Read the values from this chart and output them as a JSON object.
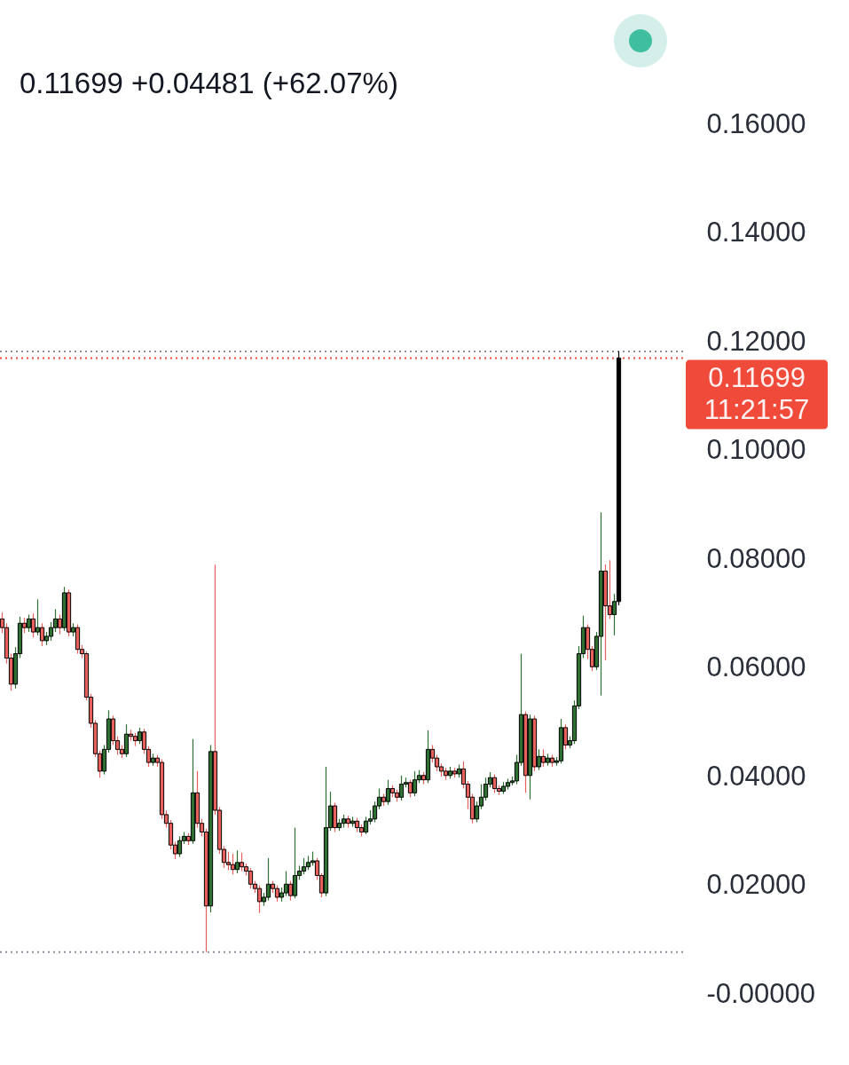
{
  "chart_data": {
    "type": "candlestick",
    "subtitle": "0.11699 +0.04481 (+62.07%)",
    "categories": [
      null,
      null,
      null,
      null,
      null,
      null,
      null,
      null,
      null,
      null,
      null,
      null,
      null,
      null,
      null,
      null,
      null,
      null,
      null,
      null,
      null,
      null,
      null,
      null,
      null,
      null,
      null,
      null,
      null,
      null,
      null,
      null,
      null,
      null,
      null,
      null,
      null,
      null,
      null,
      null,
      null,
      null,
      null,
      null,
      null,
      null,
      null,
      null,
      null,
      null,
      null,
      null,
      null,
      null,
      null,
      null,
      null,
      null,
      null,
      null,
      null,
      null,
      null,
      null,
      null,
      null,
      null,
      null,
      null,
      null,
      null,
      null,
      null,
      null,
      null,
      null,
      null,
      null,
      null,
      null,
      null,
      null,
      null,
      null,
      null,
      null,
      null,
      null,
      null,
      null,
      null,
      null,
      null,
      null,
      null,
      null,
      null,
      null,
      null,
      null,
      null,
      null,
      null,
      null,
      null,
      null,
      null,
      null,
      null,
      null,
      null,
      null,
      null,
      null,
      null,
      null,
      null,
      null,
      null,
      null,
      null,
      null,
      null,
      null,
      null,
      null,
      null,
      null,
      null,
      null,
      null,
      null,
      null,
      null,
      null,
      null,
      null,
      null,
      null,
      null
    ],
    "ohlc": [
      [
        0.069,
        0.0702,
        0.0664,
        0.0674
      ],
      [
        0.0674,
        0.0682,
        0.0608,
        0.0618
      ],
      [
        0.0618,
        0.0626,
        0.0558,
        0.057
      ],
      [
        0.057,
        0.0638,
        0.0562,
        0.0626
      ],
      [
        0.0626,
        0.0694,
        0.0618,
        0.0682
      ],
      [
        0.0682,
        0.0692,
        0.0664,
        0.0674
      ],
      [
        0.0674,
        0.0698,
        0.0666,
        0.069
      ],
      [
        0.069,
        0.07,
        0.0656,
        0.0666
      ],
      [
        0.0666,
        0.0726,
        0.066,
        0.0674
      ],
      [
        0.0674,
        0.0682,
        0.064,
        0.065
      ],
      [
        0.065,
        0.0666,
        0.0642,
        0.0658
      ],
      [
        0.0658,
        0.0684,
        0.065,
        0.0674
      ],
      [
        0.0674,
        0.0708,
        0.0666,
        0.069
      ],
      [
        0.069,
        0.0698,
        0.0662,
        0.0674
      ],
      [
        0.0674,
        0.0749,
        0.0668,
        0.0738
      ],
      [
        0.0738,
        0.0744,
        0.0658,
        0.0666
      ],
      [
        0.0666,
        0.0682,
        0.0658,
        0.0674
      ],
      [
        0.0674,
        0.068,
        0.0626,
        0.0634
      ],
      [
        0.0634,
        0.0642,
        0.0618,
        0.0626
      ],
      [
        0.0626,
        0.063,
        0.054,
        0.0546
      ],
      [
        0.0546,
        0.0552,
        0.049,
        0.0498
      ],
      [
        0.0498,
        0.0504,
        0.0436,
        0.0442
      ],
      [
        0.0442,
        0.0448,
        0.0398,
        0.041
      ],
      [
        0.041,
        0.0458,
        0.0404,
        0.045
      ],
      [
        0.045,
        0.0522,
        0.0444,
        0.0506
      ],
      [
        0.0506,
        0.0512,
        0.0458,
        0.0466
      ],
      [
        0.0466,
        0.0474,
        0.044,
        0.045
      ],
      [
        0.045,
        0.0458,
        0.0434,
        0.0442
      ],
      [
        0.0442,
        0.0496,
        0.0436,
        0.0478
      ],
      [
        0.0478,
        0.0486,
        0.0466,
        0.0474
      ],
      [
        0.0474,
        0.048,
        0.0456,
        0.0466
      ],
      [
        0.0466,
        0.049,
        0.046,
        0.0482
      ],
      [
        0.0482,
        0.0488,
        0.0442,
        0.045
      ],
      [
        0.045,
        0.0456,
        0.0418,
        0.0426
      ],
      [
        0.0426,
        0.0442,
        0.042,
        0.0434
      ],
      [
        0.0434,
        0.044,
        0.0418,
        0.0426
      ],
      [
        0.0426,
        0.0432,
        0.0322,
        0.033
      ],
      [
        0.033,
        0.0338,
        0.0306,
        0.0314
      ],
      [
        0.0314,
        0.032,
        0.0266,
        0.0274
      ],
      [
        0.0274,
        0.028,
        0.0248,
        0.0258
      ],
      [
        0.0258,
        0.029,
        0.0252,
        0.0282
      ],
      [
        0.0282,
        0.0298,
        0.0276,
        0.029
      ],
      [
        0.029,
        0.0296,
        0.0274,
        0.0282
      ],
      [
        0.0282,
        0.0469,
        0.0276,
        0.037
      ],
      [
        0.037,
        0.041,
        0.0306,
        0.0314
      ],
      [
        0.0314,
        0.0322,
        0.029,
        0.0298
      ],
      [
        0.0298,
        0.0304,
        0.0077,
        0.0162
      ],
      [
        0.0162,
        0.0458,
        0.015,
        0.0446
      ],
      [
        0.0446,
        0.079,
        0.033,
        0.0338
      ],
      [
        0.0338,
        0.0344,
        0.0258,
        0.0266
      ],
      [
        0.0266,
        0.0272,
        0.0232,
        0.0242
      ],
      [
        0.0242,
        0.0262,
        0.0228,
        0.0238
      ],
      [
        0.0238,
        0.0258,
        0.022,
        0.0229
      ],
      [
        0.0229,
        0.0264,
        0.0222,
        0.0242
      ],
      [
        0.0242,
        0.026,
        0.0226,
        0.0234
      ],
      [
        0.0234,
        0.024,
        0.0218,
        0.0226
      ],
      [
        0.0226,
        0.0232,
        0.0194,
        0.0202
      ],
      [
        0.0202,
        0.0208,
        0.0186,
        0.0194
      ],
      [
        0.0194,
        0.02,
        0.0149,
        0.017
      ],
      [
        0.017,
        0.0186,
        0.0162,
        0.0178
      ],
      [
        0.0178,
        0.025,
        0.0172,
        0.0202
      ],
      [
        0.0202,
        0.0208,
        0.0186,
        0.0194
      ],
      [
        0.0194,
        0.02,
        0.017,
        0.0178
      ],
      [
        0.0178,
        0.0196,
        0.017,
        0.0186
      ],
      [
        0.0186,
        0.0226,
        0.018,
        0.0202
      ],
      [
        0.0202,
        0.0208,
        0.0172,
        0.0181
      ],
      [
        0.0181,
        0.0306,
        0.0176,
        0.0218
      ],
      [
        0.0218,
        0.0236,
        0.021,
        0.0226
      ],
      [
        0.0226,
        0.025,
        0.022,
        0.0234
      ],
      [
        0.0234,
        0.0254,
        0.0228,
        0.0242
      ],
      [
        0.0242,
        0.0262,
        0.0236,
        0.0245
      ],
      [
        0.0245,
        0.025,
        0.021,
        0.0218
      ],
      [
        0.0218,
        0.0222,
        0.0178,
        0.0186
      ],
      [
        0.0186,
        0.0418,
        0.018,
        0.0306
      ],
      [
        0.0306,
        0.0372,
        0.03,
        0.0346
      ],
      [
        0.0346,
        0.0352,
        0.0298,
        0.0306
      ],
      [
        0.0306,
        0.0322,
        0.03,
        0.0314
      ],
      [
        0.0314,
        0.033,
        0.0306,
        0.0322
      ],
      [
        0.0322,
        0.0328,
        0.0306,
        0.0314
      ],
      [
        0.0314,
        0.0326,
        0.0308,
        0.0318
      ],
      [
        0.0318,
        0.0324,
        0.0298,
        0.0306
      ],
      [
        0.0306,
        0.0312,
        0.029,
        0.0298
      ],
      [
        0.0298,
        0.0326,
        0.0294,
        0.0318
      ],
      [
        0.0318,
        0.0338,
        0.0312,
        0.0322
      ],
      [
        0.0322,
        0.0354,
        0.0316,
        0.0346
      ],
      [
        0.0346,
        0.0378,
        0.034,
        0.0362
      ],
      [
        0.0362,
        0.0368,
        0.0346,
        0.0354
      ],
      [
        0.0354,
        0.0394,
        0.0348,
        0.0378
      ],
      [
        0.0378,
        0.0384,
        0.0362,
        0.037
      ],
      [
        0.037,
        0.0376,
        0.0354,
        0.0362
      ],
      [
        0.0362,
        0.0402,
        0.0356,
        0.0386
      ],
      [
        0.0386,
        0.0398,
        0.038,
        0.0389
      ],
      [
        0.0389,
        0.0394,
        0.0362,
        0.037
      ],
      [
        0.037,
        0.041,
        0.0364,
        0.0394
      ],
      [
        0.0394,
        0.0412,
        0.0388,
        0.0402
      ],
      [
        0.0402,
        0.0408,
        0.0386,
        0.0394
      ],
      [
        0.0394,
        0.0485,
        0.0388,
        0.045
      ],
      [
        0.045,
        0.0458,
        0.0426,
        0.0434
      ],
      [
        0.0434,
        0.044,
        0.041,
        0.0418
      ],
      [
        0.0418,
        0.0424,
        0.04,
        0.041
      ],
      [
        0.041,
        0.0416,
        0.0394,
        0.0402
      ],
      [
        0.0402,
        0.0418,
        0.0396,
        0.041
      ],
      [
        0.041,
        0.0416,
        0.0398,
        0.0405
      ],
      [
        0.0405,
        0.0422,
        0.0398,
        0.0414
      ],
      [
        0.0414,
        0.0428,
        0.0378,
        0.0386
      ],
      [
        0.0386,
        0.0392,
        0.034,
        0.0362
      ],
      [
        0.0362,
        0.0368,
        0.0314,
        0.0322
      ],
      [
        0.0322,
        0.0354,
        0.0316,
        0.0346
      ],
      [
        0.0346,
        0.0386,
        0.034,
        0.0362
      ],
      [
        0.0362,
        0.0398,
        0.0356,
        0.0386
      ],
      [
        0.0386,
        0.0408,
        0.038,
        0.0398
      ],
      [
        0.0398,
        0.0404,
        0.037,
        0.0378
      ],
      [
        0.0378,
        0.0384,
        0.0366,
        0.0373
      ],
      [
        0.0373,
        0.039,
        0.0368,
        0.0382
      ],
      [
        0.0382,
        0.0396,
        0.0376,
        0.0389
      ],
      [
        0.0389,
        0.04,
        0.0384,
        0.0392
      ],
      [
        0.0392,
        0.044,
        0.0386,
        0.0426
      ],
      [
        0.0426,
        0.0626,
        0.042,
        0.0514
      ],
      [
        0.0514,
        0.052,
        0.037,
        0.0402
      ],
      [
        0.0402,
        0.0514,
        0.0358,
        0.0506
      ],
      [
        0.0506,
        0.0512,
        0.041,
        0.0418
      ],
      [
        0.0418,
        0.045,
        0.0412,
        0.0437
      ],
      [
        0.0437,
        0.045,
        0.0418,
        0.0426
      ],
      [
        0.0426,
        0.0442,
        0.042,
        0.0434
      ],
      [
        0.0434,
        0.044,
        0.0418,
        0.0426
      ],
      [
        0.0426,
        0.0436,
        0.042,
        0.0429
      ],
      [
        0.0429,
        0.0506,
        0.0424,
        0.049
      ],
      [
        0.049,
        0.0496,
        0.045,
        0.0458
      ],
      [
        0.0458,
        0.0474,
        0.0452,
        0.0466
      ],
      [
        0.0466,
        0.054,
        0.046,
        0.053
      ],
      [
        0.053,
        0.064,
        0.0524,
        0.0626
      ],
      [
        0.0626,
        0.0696,
        0.0618,
        0.0674
      ],
      [
        0.0674,
        0.068,
        0.0616,
        0.0634
      ],
      [
        0.0634,
        0.064,
        0.0594,
        0.0602
      ],
      [
        0.0602,
        0.0666,
        0.0596,
        0.0658
      ],
      [
        0.0658,
        0.0886,
        0.0549,
        0.0778
      ],
      [
        0.0778,
        0.079,
        0.0614,
        0.0714
      ],
      [
        0.0714,
        0.0798,
        0.069,
        0.0698
      ],
      [
        0.0698,
        0.0736,
        0.066,
        0.0722
      ],
      [
        0.0722,
        0.1182,
        0.0715,
        0.11699
      ]
    ],
    "color": "#000000",
    "colors": [
      "#e8605b",
      "#e8605b",
      "#e8605b",
      "#2e7031",
      "#2e7031",
      "#e8605b",
      "#2e7031",
      "#e8605b",
      "#2e7031",
      "#e8605b",
      "#2e7031",
      "#2e7031",
      "#2e7031",
      "#e8605b",
      "#2e7031",
      "#e8605b",
      "#2e7031",
      "#e8605b",
      "#e8605b",
      "#e8605b",
      "#e8605b",
      "#e8605b",
      "#e8605b",
      "#2e7031",
      "#2e7031",
      "#e8605b",
      "#e8605b",
      "#e8605b",
      "#2e7031",
      "#e8605b",
      "#e8605b",
      "#2e7031",
      "#e8605b",
      "#e8605b",
      "#2e7031",
      "#e8605b",
      "#e8605b",
      "#e8605b",
      "#e8605b",
      "#e8605b",
      "#2e7031",
      "#2e7031",
      "#e8605b",
      "#2e7031",
      "#e8605b",
      "#e8605b",
      "#e8605b",
      "#2e7031",
      "#e8605b",
      "#e8605b",
      "#e8605b",
      "#e8605b",
      "#e8605b",
      "#2e7031",
      "#e8605b",
      "#e8605b",
      "#e8605b",
      "#e8605b",
      "#e8605b",
      "#2e7031",
      "#2e7031",
      "#e8605b",
      "#e8605b",
      "#2e7031",
      "#2e7031",
      "#e8605b",
      "#2e7031",
      "#2e7031",
      "#2e7031",
      "#2e7031",
      "#2e7031",
      "#e8605b",
      "#e8605b",
      "#2e7031",
      "#2e7031",
      "#e8605b",
      "#2e7031",
      "#2e7031",
      "#e8605b",
      "#2e7031",
      "#e8605b",
      "#e8605b",
      "#2e7031",
      "#2e7031",
      "#2e7031",
      "#2e7031",
      "#e8605b",
      "#2e7031",
      "#e8605b",
      "#e8605b",
      "#2e7031",
      "#2e7031",
      "#e8605b",
      "#2e7031",
      "#2e7031",
      "#e8605b",
      "#2e7031",
      "#e8605b",
      "#e8605b",
      "#e8605b",
      "#e8605b",
      "#2e7031",
      "#e8605b",
      "#2e7031",
      "#e8605b",
      "#e8605b",
      "#e8605b",
      "#2e7031",
      "#2e7031",
      "#2e7031",
      "#2e7031",
      "#e8605b",
      "#e8605b",
      "#2e7031",
      "#2e7031",
      "#2e7031",
      "#2e7031",
      "#2e7031",
      "#e8605b",
      "#2e7031",
      "#e8605b",
      "#2e7031",
      "#e8605b",
      "#2e7031",
      "#e8605b",
      "#2e7031",
      "#2e7031",
      "#e8605b",
      "#2e7031",
      "#2e7031",
      "#2e7031",
      "#2e7031",
      "#e8605b",
      "#e8605b",
      "#2e7031",
      "#2e7031",
      "#e8605b",
      "#e8605b",
      "#2e7031",
      "#000000"
    ],
    "ylim": [
      0,
      0.16
    ],
    "yticks": [
      {
        "value": 0,
        "label": "-0.00000"
      },
      {
        "value": 0.02,
        "label": "0.02000"
      },
      {
        "value": 0.04,
        "label": "0.04000"
      },
      {
        "value": 0.06,
        "label": "0.06000"
      },
      {
        "value": 0.08,
        "label": "0.08000"
      },
      {
        "value": 0.1,
        "label": "0.10000"
      },
      {
        "value": 0.12,
        "label": "0.12000"
      },
      {
        "value": 0.14,
        "label": "0.14000"
      },
      {
        "value": 0.16,
        "label": "0.16000"
      }
    ],
    "tick_labels": "y",
    "ref_lines": [
      {
        "axis": "y",
        "value": 0.1182,
        "color": "#8a8f99",
        "line_style": "dotted"
      },
      {
        "axis": "y",
        "value": 0.0077,
        "color": "#8a8f99",
        "line_style": "dotted"
      },
      {
        "axis": "y",
        "value": 0.11699,
        "label": "0.11699\n11:21:57",
        "color": "#f04a3a",
        "line_style": "dotted"
      }
    ]
  }
}
